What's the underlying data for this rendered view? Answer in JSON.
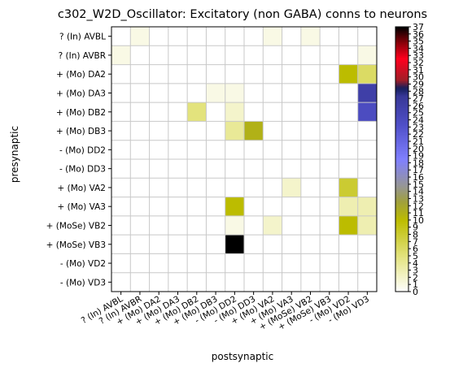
{
  "chart_data": {
    "type": "heatmap",
    "title": "c302_W2D_Oscillator: Excitatory (non GABA) conns to neurons",
    "xlabel": "postsynaptic",
    "ylabel": "presynaptic",
    "rows": [
      "? (In) AVBL",
      "? (In) AVBR",
      "+ (Mo) DA2",
      "+ (Mo) DA3",
      "+ (Mo) DB2",
      "+ (Mo) DB3",
      "- (Mo) DD2",
      "- (Mo) DD3",
      "+ (Mo) VA2",
      "+ (Mo) VA3",
      "+ (MoSe) VB2",
      "+ (MoSe) VB3",
      "- (Mo) VD2",
      "- (Mo) VD3"
    ],
    "columns": [
      "? (In) AVBL",
      "? (In) AVBR",
      "+ (Mo) DA2",
      "+ (Mo) DA3",
      "+ (Mo) DB2",
      "+ (Mo) DB3",
      "- (Mo) DD2",
      "- (Mo) DD3",
      "+ (Mo) VA2",
      "+ (Mo) VA3",
      "+ (MoSe) VB2",
      "+ (MoSe) VB3",
      "- (Mo) VD2",
      "- (Mo) VD3"
    ],
    "values": [
      [
        0,
        1,
        0,
        0,
        0,
        0,
        0,
        0,
        1,
        0,
        1,
        0,
        0,
        0
      ],
      [
        1,
        0,
        0,
        0,
        0,
        0,
        0,
        0,
        0,
        0,
        0,
        0,
        0,
        1
      ],
      [
        0,
        0,
        0,
        0,
        0,
        0,
        0,
        0,
        0,
        0,
        0,
        0,
        10,
        6
      ],
      [
        0,
        0,
        0,
        0,
        0,
        1,
        1,
        0,
        0,
        0,
        0,
        0,
        0,
        26
      ],
      [
        0,
        0,
        0,
        0,
        5,
        0,
        2,
        0,
        0,
        0,
        0,
        0,
        0,
        24
      ],
      [
        0,
        0,
        0,
        0,
        0,
        0,
        4,
        11,
        0,
        0,
        0,
        0,
        0,
        0
      ],
      [
        0,
        0,
        0,
        0,
        0,
        0,
        0,
        0,
        0,
        0,
        0,
        0,
        0,
        0
      ],
      [
        0,
        0,
        0,
        0,
        0,
        0,
        0,
        0,
        0,
        0,
        0,
        0,
        0,
        0
      ],
      [
        0,
        0,
        0,
        0,
        0,
        0,
        0,
        0,
        0,
        2,
        0,
        0,
        8,
        0
      ],
      [
        0,
        0,
        0,
        0,
        0,
        0,
        10,
        0,
        0,
        0,
        0,
        0,
        3,
        3
      ],
      [
        0,
        0,
        0,
        0,
        0,
        0,
        1,
        0,
        2,
        0,
        0,
        0,
        10,
        3
      ],
      [
        0,
        0,
        0,
        0,
        0,
        0,
        37,
        0,
        0,
        0,
        0,
        0,
        0,
        0
      ],
      [
        0,
        0,
        0,
        0,
        0,
        0,
        0,
        0,
        0,
        0,
        0,
        0,
        0,
        0
      ],
      [
        0,
        0,
        0,
        0,
        0,
        0,
        0,
        0,
        0,
        0,
        0,
        0,
        0,
        0
      ]
    ],
    "colorbar": {
      "min": 0,
      "max": 37,
      "ticks": [
        0,
        1,
        2,
        3,
        4,
        5,
        6,
        7,
        8,
        9,
        10,
        11,
        12,
        13,
        14,
        15,
        16,
        17,
        18,
        19,
        20,
        21,
        22,
        23,
        24,
        25,
        26,
        27,
        28,
        29,
        30,
        31,
        32,
        33,
        34,
        35,
        36,
        37
      ]
    },
    "colormap": "gist_stern_r",
    "grid": true
  }
}
